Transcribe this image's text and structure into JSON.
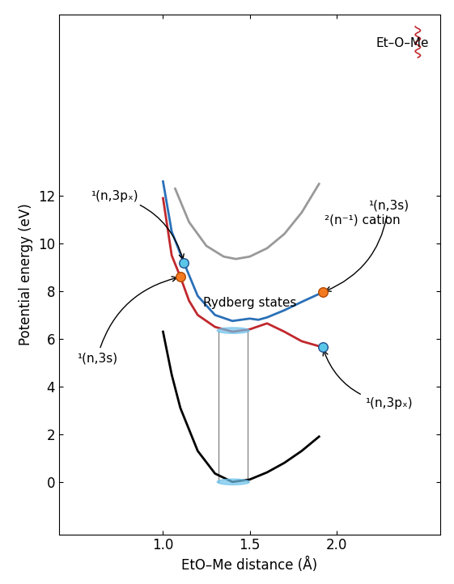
{
  "chart_data": {
    "type": "line",
    "x_label": "EtO–Me distance (Å)",
    "y_label": "Potential energy (eV)",
    "xlim": [
      0.4,
      2.6
    ],
    "ylim": [
      -2.2,
      19.6
    ],
    "xticks": [
      {
        "value": 1.0,
        "label": "1.0"
      },
      {
        "value": 1.5,
        "label": "1.5"
      },
      {
        "value": 2.0,
        "label": "2.0"
      }
    ],
    "yticks": [
      0,
      2,
      4,
      6,
      8,
      10,
      12
    ],
    "grid": false,
    "series": [
      {
        "color": "#000000",
        "x": [
          1.0,
          1.05,
          1.1,
          1.2,
          1.3,
          1.4,
          1.5,
          1.6,
          1.7,
          1.8,
          1.9
        ],
        "values": [
          6.3,
          4.5,
          3.1,
          1.3,
          0.35,
          0.0,
          0.1,
          0.4,
          0.8,
          1.3,
          1.9
        ]
      },
      {
        "color": "#999999",
        "x": [
          1.07,
          1.15,
          1.25,
          1.35,
          1.42,
          1.5,
          1.6,
          1.7,
          1.8,
          1.9
        ],
        "values": [
          12.3,
          10.9,
          9.9,
          9.45,
          9.35,
          9.45,
          9.8,
          10.4,
          11.3,
          12.5
        ]
      },
      {
        "color": "#c0282d",
        "x": [
          1.0,
          1.05,
          1.1,
          1.15,
          1.2,
          1.3,
          1.4,
          1.5,
          1.6,
          1.7,
          1.8,
          1.92
        ],
        "values": [
          11.9,
          9.5,
          8.6,
          7.6,
          7.0,
          6.5,
          6.3,
          6.4,
          6.65,
          6.3,
          5.9,
          5.65
        ]
      },
      {
        "color": "#2a70b8",
        "x": [
          1.0,
          1.05,
          1.12,
          1.2,
          1.3,
          1.4,
          1.5,
          1.55,
          1.6,
          1.7,
          1.8,
          1.92
        ],
        "values": [
          12.6,
          10.5,
          9.2,
          7.8,
          7.0,
          6.75,
          6.85,
          6.8,
          6.9,
          7.2,
          7.55,
          7.95
        ]
      }
    ],
    "points": [
      {
        "x": 1.12,
        "y": 9.2,
        "color": "#5bc6e8"
      },
      {
        "x": 1.92,
        "y": 5.65,
        "color": "#5bc6e8"
      },
      {
        "x": 1.1,
        "y": 8.6,
        "color": "#f47a20"
      },
      {
        "x": 1.92,
        "y": 7.95,
        "color": "#f47a20"
      }
    ],
    "franck_condon": {
      "x": [
        1.32,
        1.49
      ],
      "y": [
        0.0,
        6.35
      ]
    },
    "annotations": [
      {
        "text": "¹(n,3pₓ)",
        "point": [
          1.12,
          9.2
        ]
      },
      {
        "text": "¹(n,3s)",
        "point": [
          1.1,
          8.6
        ]
      },
      {
        "text": "¹(n,3s)",
        "point": [
          1.92,
          7.95
        ]
      },
      {
        "text": "¹(n,3pₓ)",
        "point": [
          1.92,
          5.65
        ]
      },
      {
        "text": "Rydberg states"
      },
      {
        "text": "²(n⁻¹) cation"
      },
      {
        "text": "Et–O–Me"
      }
    ]
  }
}
